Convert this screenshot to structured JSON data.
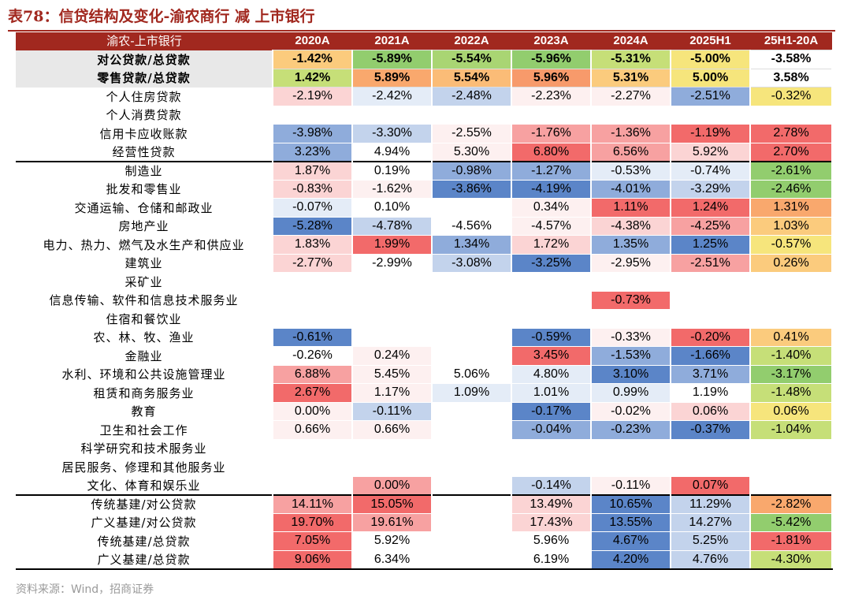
{
  "title": "表78：信贷结构及变化-渝农商行 减 上市银行",
  "source": "资料来源：Wind，招商证券",
  "colors": {
    "accent": "#a1281f",
    "deep_red": "#f26a6a",
    "mid_red": "#f7a1a1",
    "light_red": "#fbd4d4",
    "pale_red": "#fdf0f0",
    "deep_blue": "#5b85c8",
    "mid_blue": "#8facdb",
    "light_blue": "#c3d3ec",
    "pale_blue": "#e4ecf7",
    "green": "#92cd6e",
    "light_green": "#c6df78",
    "yellow": "#f6e57c",
    "light_orange": "#fbcb7d",
    "orange": "#f9a86d",
    "white": "#ffffff"
  },
  "table": {
    "header": [
      "渝农-上市银行",
      "2020A",
      "2021A",
      "2022A",
      "2023A",
      "2024A",
      "2025H1",
      "25H1-20A"
    ],
    "rows": [
      {
        "label": "对公贷款/总贷款",
        "values": [
          "-1.42%",
          "-5.89%",
          "-5.54%",
          "-5.96%",
          "-5.31%",
          "-5.00%",
          "-3.58%"
        ],
        "colors": [
          "#fbcb7d",
          "#92cd6e",
          "#a9d573",
          "#92cd6e",
          "#c6df78",
          "#f6e57c",
          "#ffffff"
        ],
        "style": "bold summary"
      },
      {
        "label": "零售贷款/总贷款",
        "values": [
          "1.42%",
          "5.89%",
          "5.54%",
          "5.96%",
          "5.31%",
          "5.00%",
          "3.58%"
        ],
        "colors": [
          "#c6df78",
          "#f9a86d",
          "#fbbc77",
          "#f79a6b",
          "#fbcb7d",
          "#f6e57c",
          "#ffffff"
        ],
        "style": "bold summary"
      },
      {
        "label": "个人住房贷款",
        "values": [
          "-2.19%",
          "-2.42%",
          "-2.48%",
          "-2.23%",
          "-2.27%",
          "-2.51%",
          "-0.32%"
        ],
        "colors": [
          "#fbd4d4",
          "#e4ecf7",
          "#c3d3ec",
          "#fdf0f0",
          "#fdf0f0",
          "#8facdb",
          "#f6e57c"
        ],
        "style": ""
      },
      {
        "label": "个人消费贷款",
        "values": [
          "",
          "",
          "",
          "",
          "",
          "",
          ""
        ],
        "colors": [
          "#ffffff",
          "#ffffff",
          "#ffffff",
          "#ffffff",
          "#ffffff",
          "#ffffff",
          "#ffffff"
        ],
        "style": ""
      },
      {
        "label": "信用卡应收账款",
        "values": [
          "-3.98%",
          "-3.30%",
          "-2.55%",
          "-1.76%",
          "-1.36%",
          "-1.19%",
          "2.78%"
        ],
        "colors": [
          "#8facdb",
          "#c3d3ec",
          "#fdf0f0",
          "#f7a1a1",
          "#f7a1a1",
          "#f26a6a",
          "#f26a6a"
        ],
        "style": ""
      },
      {
        "label": "经营性贷款",
        "values": [
          "3.23%",
          "4.94%",
          "5.30%",
          "6.80%",
          "6.56%",
          "5.92%",
          "2.70%"
        ],
        "colors": [
          "#8facdb",
          "#ffffff",
          "#fdf0f0",
          "#f26a6a",
          "#f7a1a1",
          "#fbd4d4",
          "#f26a6a"
        ],
        "style": ""
      },
      {
        "label": "制造业",
        "values": [
          "1.87%",
          "0.19%",
          "-0.98%",
          "-1.27%",
          "-0.53%",
          "-0.74%",
          "-2.61%"
        ],
        "colors": [
          "#fbd4d4",
          "#ffffff",
          "#8facdb",
          "#8facdb",
          "#e4ecf7",
          "#e4ecf7",
          "#92cd6e"
        ],
        "style": "sep"
      },
      {
        "label": "批发和零售业",
        "values": [
          "-0.83%",
          "-1.62%",
          "-3.86%",
          "-4.19%",
          "-4.01%",
          "-3.29%",
          "-2.46%"
        ],
        "colors": [
          "#fbd4d4",
          "#fdf0f0",
          "#5b85c8",
          "#5b85c8",
          "#8facdb",
          "#c3d3ec",
          "#92cd6e"
        ],
        "style": ""
      },
      {
        "label": "交通运输、仓储和邮政业",
        "values": [
          "-0.07%",
          "0.10%",
          "",
          "0.34%",
          "1.11%",
          "1.24%",
          "1.31%"
        ],
        "colors": [
          "#e4ecf7",
          "#ffffff",
          "#ffffff",
          "#fdf0f0",
          "#f26a6a",
          "#f26a6a",
          "#f9a86d"
        ],
        "style": ""
      },
      {
        "label": "房地产业",
        "values": [
          "-5.28%",
          "-4.78%",
          "-4.56%",
          "-4.57%",
          "-4.38%",
          "-4.25%",
          "1.03%"
        ],
        "colors": [
          "#5b85c8",
          "#c3d3ec",
          "#ffffff",
          "#fdf0f0",
          "#fbd4d4",
          "#f7a1a1",
          "#fbcb7d"
        ],
        "style": ""
      },
      {
        "label": "电力、热力、燃气及水生产和供应业",
        "values": [
          "1.83%",
          "1.99%",
          "1.34%",
          "1.72%",
          "1.35%",
          "1.25%",
          "-0.57%"
        ],
        "colors": [
          "#fbd4d4",
          "#f26a6a",
          "#8facdb",
          "#fbd4d4",
          "#8facdb",
          "#5b85c8",
          "#f6e57c"
        ],
        "style": ""
      },
      {
        "label": "建筑业",
        "values": [
          "-2.77%",
          "-2.99%",
          "-3.08%",
          "-3.25%",
          "-2.95%",
          "-2.51%",
          "0.26%"
        ],
        "colors": [
          "#fbd4d4",
          "#ffffff",
          "#c3d3ec",
          "#5b85c8",
          "#fdf0f0",
          "#f7a1a1",
          "#fbcb7d"
        ],
        "style": ""
      },
      {
        "label": "采矿业",
        "values": [
          "",
          "",
          "",
          "",
          "",
          "",
          ""
        ],
        "colors": [
          "#ffffff",
          "#ffffff",
          "#ffffff",
          "#ffffff",
          "#ffffff",
          "#ffffff",
          "#ffffff"
        ],
        "style": ""
      },
      {
        "label": "信息传输、软件和信息技术服务业",
        "values": [
          "",
          "",
          "",
          "",
          "-0.73%",
          "",
          ""
        ],
        "colors": [
          "#ffffff",
          "#ffffff",
          "#ffffff",
          "#ffffff",
          "#f26a6a",
          "#ffffff",
          "#ffffff"
        ],
        "style": ""
      },
      {
        "label": "住宿和餐饮业",
        "values": [
          "",
          "",
          "",
          "",
          "",
          "",
          ""
        ],
        "colors": [
          "#ffffff",
          "#ffffff",
          "#ffffff",
          "#ffffff",
          "#ffffff",
          "#ffffff",
          "#ffffff"
        ],
        "style": ""
      },
      {
        "label": "农、林、牧、渔业",
        "values": [
          "-0.61%",
          "",
          "",
          "-0.59%",
          "-0.33%",
          "-0.20%",
          "0.41%"
        ],
        "colors": [
          "#5b85c8",
          "#ffffff",
          "#ffffff",
          "#5b85c8",
          "#fdf0f0",
          "#f26a6a",
          "#fbcb7d"
        ],
        "style": ""
      },
      {
        "label": "金融业",
        "values": [
          "-0.26%",
          "0.24%",
          "",
          "3.45%",
          "-1.53%",
          "-1.66%",
          "-1.40%"
        ],
        "colors": [
          "#ffffff",
          "#fdf0f0",
          "#ffffff",
          "#f26a6a",
          "#8facdb",
          "#5b85c8",
          "#c6df78"
        ],
        "style": ""
      },
      {
        "label": "水利、环境和公共设施管理业",
        "values": [
          "6.88%",
          "5.45%",
          "5.06%",
          "4.80%",
          "3.10%",
          "3.71%",
          "-3.17%"
        ],
        "colors": [
          "#f7a1a1",
          "#fdf0f0",
          "#ffffff",
          "#e4ecf7",
          "#5b85c8",
          "#8facdb",
          "#92cd6e"
        ],
        "style": ""
      },
      {
        "label": "租赁和商务服务业",
        "values": [
          "2.67%",
          "1.17%",
          "1.09%",
          "1.01%",
          "0.99%",
          "1.19%",
          "-1.48%"
        ],
        "colors": [
          "#f26a6a",
          "#fdf0f0",
          "#e4ecf7",
          "#e4ecf7",
          "#e4ecf7",
          "#ffffff",
          "#c6df78"
        ],
        "style": ""
      },
      {
        "label": "教育",
        "values": [
          "0.00%",
          "-0.11%",
          "",
          "-0.17%",
          "-0.02%",
          "0.06%",
          "0.06%"
        ],
        "colors": [
          "#fdf0f0",
          "#c3d3ec",
          "#ffffff",
          "#5b85c8",
          "#fdf0f0",
          "#fbd4d4",
          "#f6e57c"
        ],
        "style": ""
      },
      {
        "label": "卫生和社会工作",
        "values": [
          "0.66%",
          "0.66%",
          "",
          "-0.04%",
          "-0.23%",
          "-0.37%",
          "-1.04%"
        ],
        "colors": [
          "#fdf0f0",
          "#fdf0f0",
          "#ffffff",
          "#8facdb",
          "#8facdb",
          "#5b85c8",
          "#c6df78"
        ],
        "style": ""
      },
      {
        "label": "科学研究和技术服务业",
        "values": [
          "",
          "",
          "",
          "",
          "",
          "",
          ""
        ],
        "colors": [
          "#ffffff",
          "#ffffff",
          "#ffffff",
          "#ffffff",
          "#ffffff",
          "#ffffff",
          "#ffffff"
        ],
        "style": ""
      },
      {
        "label": "居民服务、修理和其他服务业",
        "values": [
          "",
          "",
          "",
          "",
          "",
          "",
          ""
        ],
        "colors": [
          "#ffffff",
          "#ffffff",
          "#ffffff",
          "#ffffff",
          "#ffffff",
          "#ffffff",
          "#ffffff"
        ],
        "style": ""
      },
      {
        "label": "文化、体育和娱乐业",
        "values": [
          "",
          "0.00%",
          "",
          "-0.14%",
          "-0.11%",
          "0.07%",
          ""
        ],
        "colors": [
          "#ffffff",
          "#f7a1a1",
          "#ffffff",
          "#c3d3ec",
          "#fdf0f0",
          "#f26a6a",
          "#ffffff"
        ],
        "style": ""
      },
      {
        "label": "传统基建/对公贷款",
        "values": [
          "14.11%",
          "15.05%",
          "",
          "13.49%",
          "10.65%",
          "11.29%",
          "-2.82%"
        ],
        "colors": [
          "#f7a1a1",
          "#f26a6a",
          "#ffffff",
          "#fbd4d4",
          "#5b85c8",
          "#c3d3ec",
          "#f9a86d"
        ],
        "style": "sep"
      },
      {
        "label": "广义基建/对公贷款",
        "values": [
          "19.70%",
          "19.61%",
          "",
          "17.43%",
          "13.55%",
          "14.27%",
          "-5.42%"
        ],
        "colors": [
          "#f26a6a",
          "#f7a1a1",
          "#ffffff",
          "#fbd4d4",
          "#5b85c8",
          "#c3d3ec",
          "#92cd6e"
        ],
        "style": ""
      },
      {
        "label": "传统基建/总贷款",
        "values": [
          "7.05%",
          "5.92%",
          "",
          "5.96%",
          "4.67%",
          "5.25%",
          "-1.81%"
        ],
        "colors": [
          "#f26a6a",
          "#ffffff",
          "#ffffff",
          "#ffffff",
          "#5b85c8",
          "#c3d3ec",
          "#f26a6a"
        ],
        "style": ""
      },
      {
        "label": "广义基建/总贷款",
        "values": [
          "9.06%",
          "6.34%",
          "",
          "6.19%",
          "4.20%",
          "4.76%",
          "-4.30%"
        ],
        "colors": [
          "#f26a6a",
          "#ffffff",
          "#ffffff",
          "#ffffff",
          "#5b85c8",
          "#c3d3ec",
          "#c6df78"
        ],
        "style": "last"
      }
    ]
  }
}
